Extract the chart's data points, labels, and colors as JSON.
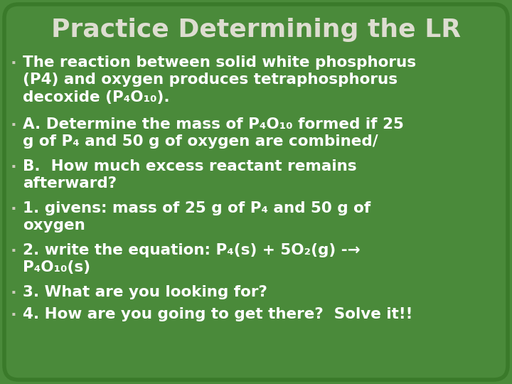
{
  "title": "Practice Determining the LR",
  "title_fontsize": 26,
  "title_color": "#ddddd0",
  "background_color": "#4a8a3a",
  "border_color": "#3a7a2a",
  "text_color": "#ffffff",
  "bullet_color": "#ccccbb",
  "body_fontsize": 15.5,
  "fig_width": 7.2,
  "fig_height": 5.4,
  "dpi": 100,
  "bullet_char": "·",
  "line_items": [
    {
      "text": "The reaction between solid white phosphorus\n(P4) and oxygen produces tetraphosphorus\ndecoxide (P₄O₁₀).",
      "nlines": 3
    },
    {
      "text": "A. Determine the mass of P₄O₁₀ formed if 25\ng of P₄ and 50 g of oxygen are combined/",
      "nlines": 2
    },
    {
      "text": "B.  How much excess reactant remains\nafterward?",
      "nlines": 2
    },
    {
      "text": "1. givens: mass of 25 g of P₄ and 50 g of\noxygen",
      "nlines": 2
    },
    {
      "text": "2. write the equation: P₄(s) + 5O₂(g) -→\nP₄O₁₀(s)",
      "nlines": 2
    },
    {
      "text": "3. What are you looking for?",
      "nlines": 1
    },
    {
      "text": "4. How are you going to get there?  Solve it!!",
      "nlines": 1
    }
  ]
}
